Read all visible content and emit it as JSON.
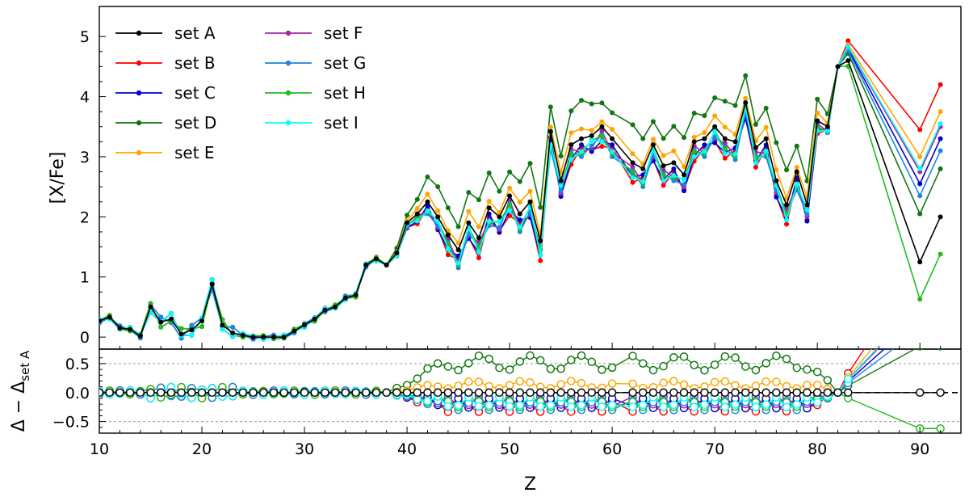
{
  "chart_data": {
    "type": "line",
    "xlabel": "Z",
    "x_ticks": [
      10,
      20,
      30,
      40,
      50,
      60,
      70,
      80,
      90
    ],
    "x_range": [
      10,
      94
    ],
    "top_panel": {
      "ylabel": "[X/Fe]",
      "y_range": [
        -0.2,
        5.5
      ],
      "y_ticks": [
        0,
        1,
        2,
        3,
        4,
        5
      ],
      "legend_position": "top-left, two columns"
    },
    "bottom_panel": {
      "ylabel_main": "Δ − Δ",
      "ylabel_sub": "set A",
      "y_range": [
        -0.7,
        0.75
      ],
      "y_ticks": [
        0.5,
        0.0,
        -0.5
      ],
      "y_tick_labels": [
        "0.5",
        "0.0",
        "−0.5"
      ],
      "reference_lines": [
        -0.5,
        0.0,
        0.5
      ]
    },
    "Z": [
      10,
      11,
      12,
      13,
      14,
      15,
      16,
      17,
      18,
      19,
      20,
      21,
      22,
      23,
      24,
      25,
      26,
      27,
      28,
      29,
      30,
      31,
      32,
      33,
      34,
      35,
      36,
      37,
      38,
      39,
      40,
      41,
      42,
      43,
      44,
      45,
      46,
      47,
      48,
      49,
      50,
      51,
      52,
      53,
      54,
      55,
      56,
      57,
      58,
      59,
      60,
      62,
      63,
      64,
      65,
      66,
      67,
      68,
      69,
      70,
      71,
      72,
      73,
      74,
      75,
      76,
      77,
      78,
      79,
      80,
      81,
      82,
      83,
      90,
      92
    ],
    "series": [
      {
        "name": "set A",
        "color": "#000000",
        "base_offset": 0,
        "delta_amp": 0,
        "delta_end": 0,
        "pos": 0
      },
      {
        "name": "set B",
        "color": "#ff0000",
        "base_offset": -0.12,
        "delta_amp": 0.5,
        "delta_end": 2.2,
        "pos": 0
      },
      {
        "name": "set C",
        "color": "#0000cc",
        "base_offset": -0.08,
        "delta_amp": 0.35,
        "delta_end": 1.3,
        "pos": 0
      },
      {
        "name": "set D",
        "color": "#117711",
        "base_offset": 0.2,
        "delta_amp": 0.9,
        "delta_end": 0.8,
        "pos": 1
      },
      {
        "name": "set E",
        "color": "#ffa500",
        "base_offset": 0.05,
        "delta_amp": 0.55,
        "delta_end": 1.75,
        "pos": 1
      },
      {
        "name": "set F",
        "color": "#aa22aa",
        "base_offset": -0.05,
        "delta_amp": 0.25,
        "delta_end": 1.5,
        "pos": 0
      },
      {
        "name": "set G",
        "color": "#1a85e5",
        "base_offset": -0.08,
        "delta_amp": 0.3,
        "delta_end": 1.1,
        "pos": 0
      },
      {
        "name": "set H",
        "color": "#22bb22",
        "base_offset": -0.04,
        "delta_amp": 0.25,
        "delta_end": -0.62,
        "pos": 0
      },
      {
        "name": "set I",
        "color": "#00ffff",
        "base_offset": -0.06,
        "delta_amp": 0.3,
        "delta_end": 1.55,
        "pos": 0
      }
    ],
    "set_A_values": [
      0.27,
      0.33,
      0.15,
      0.13,
      0.02,
      0.5,
      0.25,
      0.3,
      0.05,
      0.12,
      0.27,
      0.88,
      0.2,
      0.07,
      0.03,
      0.0,
      0.0,
      0.0,
      0.0,
      0.1,
      0.2,
      0.3,
      0.45,
      0.5,
      0.65,
      0.7,
      1.2,
      1.3,
      1.2,
      1.4,
      1.9,
      2.05,
      2.25,
      2.0,
      1.7,
      1.45,
      1.9,
      1.65,
      2.15,
      2.0,
      2.35,
      2.05,
      2.25,
      1.6,
      3.42,
      2.6,
      3.2,
      3.3,
      3.35,
      3.5,
      3.3,
      2.9,
      2.8,
      3.2,
      2.85,
      2.9,
      2.7,
      3.25,
      3.3,
      3.5,
      3.3,
      3.25,
      3.9,
      3.15,
      3.3,
      2.6,
      2.2,
      2.75,
      2.2,
      3.6,
      3.5,
      4.5,
      4.6,
      1.25,
      2.0
    ]
  }
}
